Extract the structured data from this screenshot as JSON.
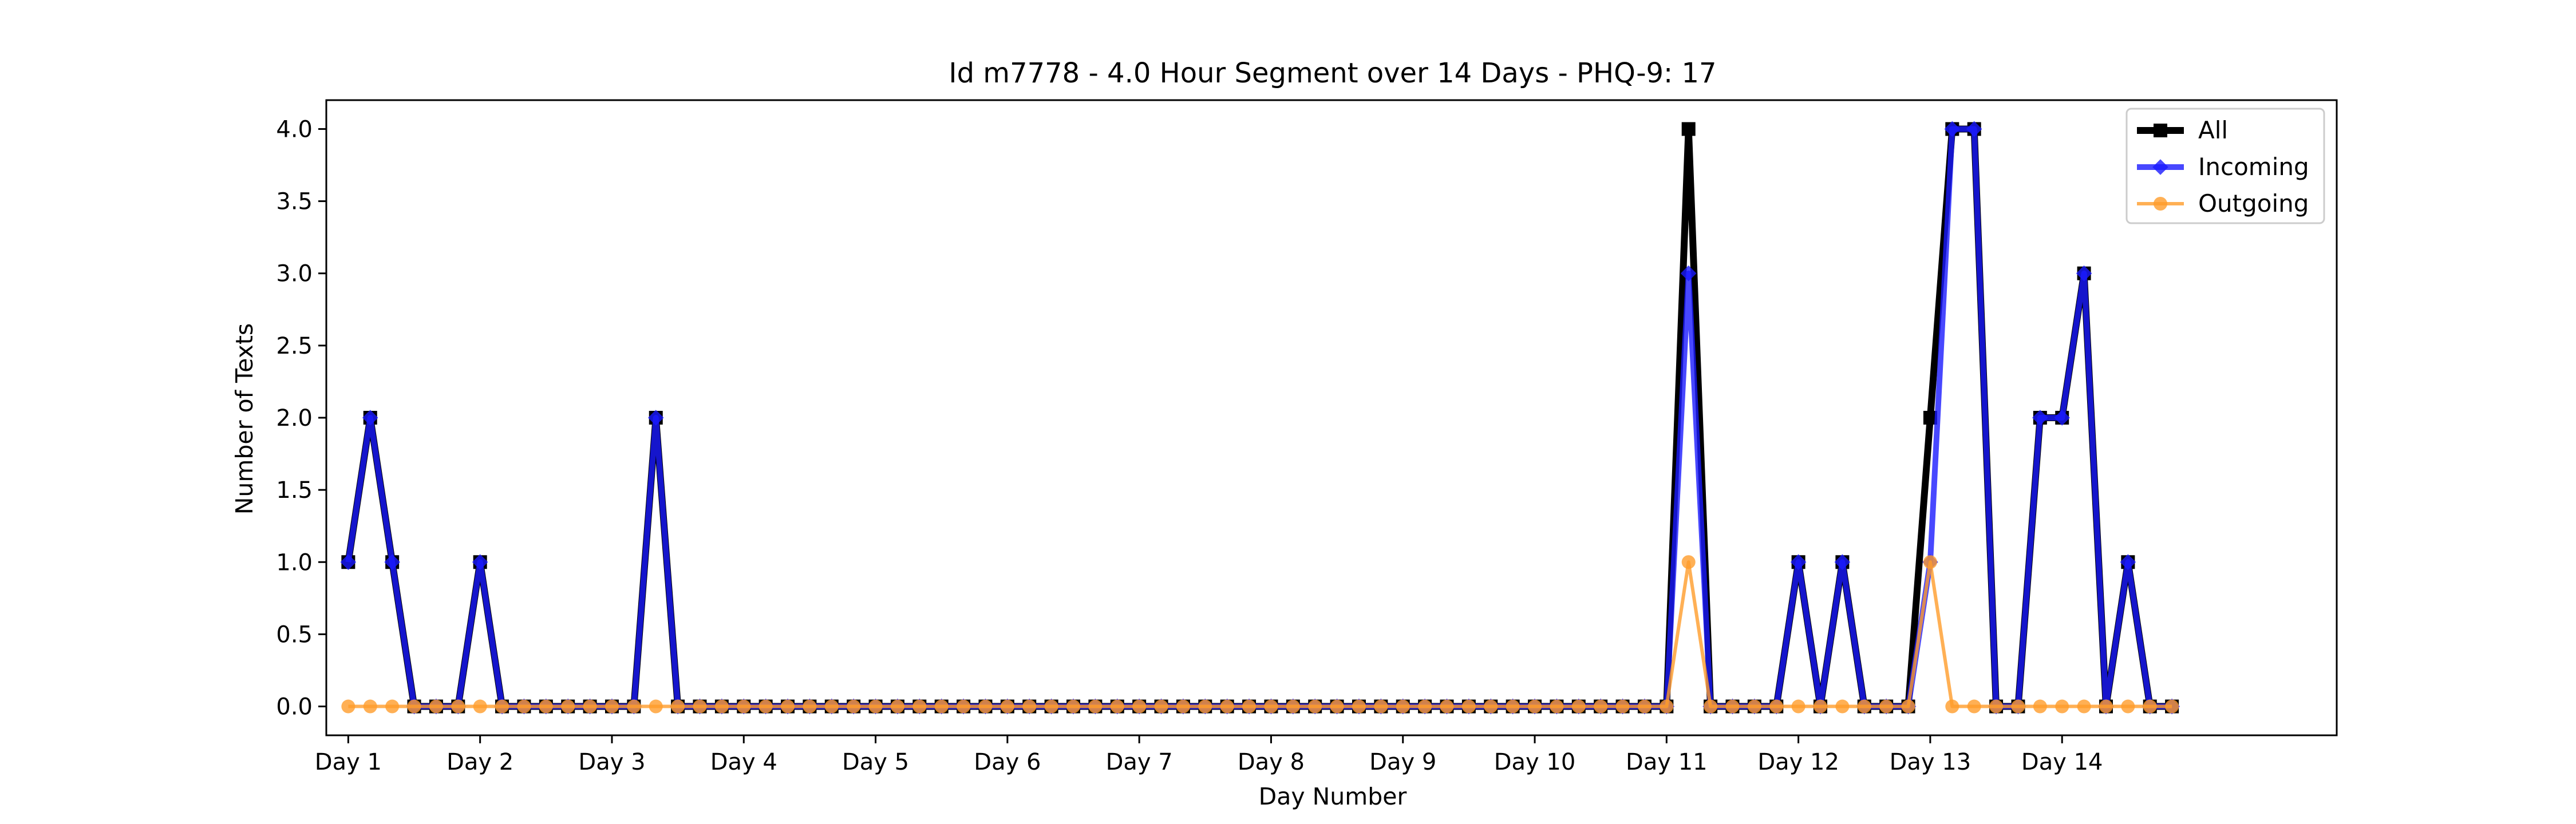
{
  "chart_data": {
    "type": "line",
    "title": "Id m7778 - 4.0 Hour Segment over 14 Days - PHQ-9: 17",
    "xlabel": "Day Number",
    "ylabel": "Number of Texts",
    "ylim": [
      -0.2,
      4.2
    ],
    "xlim": [
      -1.0,
      90.5
    ],
    "yticks": [
      "0.0",
      "0.5",
      "1.0",
      "1.5",
      "2.0",
      "2.5",
      "3.0",
      "3.5",
      "4.0"
    ],
    "ytick_values": [
      0,
      0.5,
      1,
      1.5,
      2,
      2.5,
      3,
      3.5,
      4
    ],
    "x_tick_labels": [
      "Day 1",
      "Day 2",
      "Day 3",
      "Day 4",
      "Day 5",
      "Day 6",
      "Day 7",
      "Day 8",
      "Day 9",
      "Day 10",
      "Day 11",
      "Day 12",
      "Day 13",
      "Day 14"
    ],
    "x_tick_positions": [
      0,
      6,
      12,
      18,
      24,
      30,
      36,
      42,
      48,
      54,
      60,
      66,
      72,
      78
    ],
    "grid": false,
    "legend_position": "top-right",
    "series": [
      {
        "name": "All",
        "color": "#000000",
        "marker": "square",
        "values": [
          1,
          2,
          1,
          0,
          0,
          0,
          1,
          0,
          0,
          0,
          0,
          0,
          0,
          0,
          2,
          0,
          0,
          0,
          0,
          0,
          0,
          0,
          0,
          0,
          0,
          0,
          0,
          0,
          0,
          0,
          0,
          0,
          0,
          0,
          0,
          0,
          0,
          0,
          0,
          0,
          0,
          0,
          0,
          0,
          0,
          0,
          0,
          0,
          0,
          0,
          0,
          0,
          0,
          0,
          0,
          0,
          0,
          0,
          0,
          0,
          0,
          4,
          0,
          0,
          0,
          0,
          1,
          0,
          1,
          0,
          0,
          0,
          2,
          4,
          4,
          0,
          0,
          2,
          2,
          3,
          0,
          1,
          0,
          0
        ]
      },
      {
        "name": "Incoming",
        "color": "#1a1aff",
        "marker": "diamond",
        "values": [
          1,
          2,
          1,
          0,
          0,
          0,
          1,
          0,
          0,
          0,
          0,
          0,
          0,
          0,
          2,
          0,
          0,
          0,
          0,
          0,
          0,
          0,
          0,
          0,
          0,
          0,
          0,
          0,
          0,
          0,
          0,
          0,
          0,
          0,
          0,
          0,
          0,
          0,
          0,
          0,
          0,
          0,
          0,
          0,
          0,
          0,
          0,
          0,
          0,
          0,
          0,
          0,
          0,
          0,
          0,
          0,
          0,
          0,
          0,
          0,
          0,
          3,
          0,
          0,
          0,
          0,
          1,
          0,
          1,
          0,
          0,
          0,
          1,
          4,
          4,
          0,
          0,
          2,
          2,
          3,
          0,
          1,
          0,
          0
        ]
      },
      {
        "name": "Outgoing",
        "color": "#ff9c2a",
        "marker": "circle",
        "values": [
          0,
          0,
          0,
          0,
          0,
          0,
          0,
          0,
          0,
          0,
          0,
          0,
          0,
          0,
          0,
          0,
          0,
          0,
          0,
          0,
          0,
          0,
          0,
          0,
          0,
          0,
          0,
          0,
          0,
          0,
          0,
          0,
          0,
          0,
          0,
          0,
          0,
          0,
          0,
          0,
          0,
          0,
          0,
          0,
          0,
          0,
          0,
          0,
          0,
          0,
          0,
          0,
          0,
          0,
          0,
          0,
          0,
          0,
          0,
          0,
          0,
          1,
          0,
          0,
          0,
          0,
          0,
          0,
          0,
          0,
          0,
          0,
          1,
          0,
          0,
          0,
          0,
          0,
          0,
          0,
          0,
          0,
          0,
          0
        ]
      }
    ]
  }
}
